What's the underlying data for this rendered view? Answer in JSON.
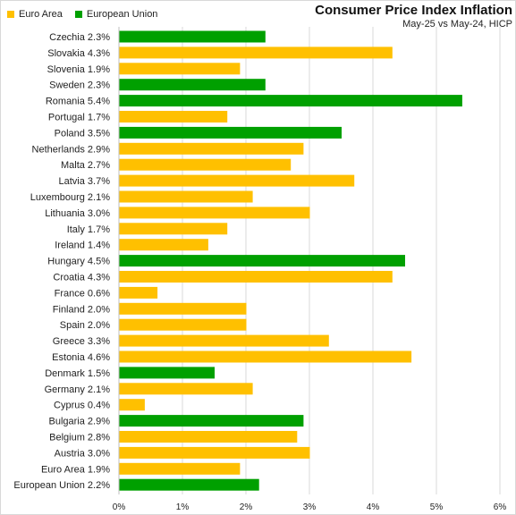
{
  "chart_data": {
    "type": "bar",
    "orientation": "horizontal",
    "title": "Consumer Price Index Inflation",
    "subtitle": "May-25 vs May-24, HICP",
    "legend": {
      "placement": "top-left",
      "entries": [
        {
          "name": "Euro Area",
          "color": "#FFC000"
        },
        {
          "name": "European Union",
          "color": "#00A000"
        }
      ]
    },
    "xlim": [
      0,
      6
    ],
    "x_ticks": [
      "0%",
      "1%",
      "2%",
      "3%",
      "4%",
      "5%",
      "6%"
    ],
    "grid": "vertical",
    "unit": "%",
    "bars": [
      {
        "label": "Czechia 2.3%",
        "value": 2.3,
        "group": "European Union"
      },
      {
        "label": "Slovakia 4.3%",
        "value": 4.3,
        "group": "Euro Area"
      },
      {
        "label": "Slovenia 1.9%",
        "value": 1.9,
        "group": "Euro Area"
      },
      {
        "label": "Sweden 2.3%",
        "value": 2.3,
        "group": "European Union"
      },
      {
        "label": "Romania 5.4%",
        "value": 5.4,
        "group": "European Union"
      },
      {
        "label": "Portugal 1.7%",
        "value": 1.7,
        "group": "Euro Area"
      },
      {
        "label": "Poland 3.5%",
        "value": 3.5,
        "group": "European Union"
      },
      {
        "label": "Netherlands 2.9%",
        "value": 2.9,
        "group": "Euro Area"
      },
      {
        "label": "Malta 2.7%",
        "value": 2.7,
        "group": "Euro Area"
      },
      {
        "label": "Latvia 3.7%",
        "value": 3.7,
        "group": "Euro Area"
      },
      {
        "label": "Luxembourg 2.1%",
        "value": 2.1,
        "group": "Euro Area"
      },
      {
        "label": "Lithuania 3.0%",
        "value": 3.0,
        "group": "Euro Area"
      },
      {
        "label": "Italy 1.7%",
        "value": 1.7,
        "group": "Euro Area"
      },
      {
        "label": "Ireland 1.4%",
        "value": 1.4,
        "group": "Euro Area"
      },
      {
        "label": "Hungary 4.5%",
        "value": 4.5,
        "group": "European Union"
      },
      {
        "label": "Croatia 4.3%",
        "value": 4.3,
        "group": "Euro Area"
      },
      {
        "label": "France 0.6%",
        "value": 0.6,
        "group": "Euro Area"
      },
      {
        "label": "Finland 2.0%",
        "value": 2.0,
        "group": "Euro Area"
      },
      {
        "label": "Spain 2.0%",
        "value": 2.0,
        "group": "Euro Area"
      },
      {
        "label": "Greece 3.3%",
        "value": 3.3,
        "group": "Euro Area"
      },
      {
        "label": "Estonia 4.6%",
        "value": 4.6,
        "group": "Euro Area"
      },
      {
        "label": "Denmark 1.5%",
        "value": 1.5,
        "group": "European Union"
      },
      {
        "label": "Germany 2.1%",
        "value": 2.1,
        "group": "Euro Area"
      },
      {
        "label": "Cyprus 0.4%",
        "value": 0.4,
        "group": "Euro Area"
      },
      {
        "label": "Bulgaria 2.9%",
        "value": 2.9,
        "group": "European Union"
      },
      {
        "label": "Belgium 2.8%",
        "value": 2.8,
        "group": "Euro Area"
      },
      {
        "label": "Austria 3.0%",
        "value": 3.0,
        "group": "Euro Area"
      },
      {
        "label": "Euro Area 1.9%",
        "value": 1.9,
        "group": "Euro Area"
      },
      {
        "label": "European Union 2.2%",
        "value": 2.2,
        "group": "European Union"
      }
    ]
  }
}
